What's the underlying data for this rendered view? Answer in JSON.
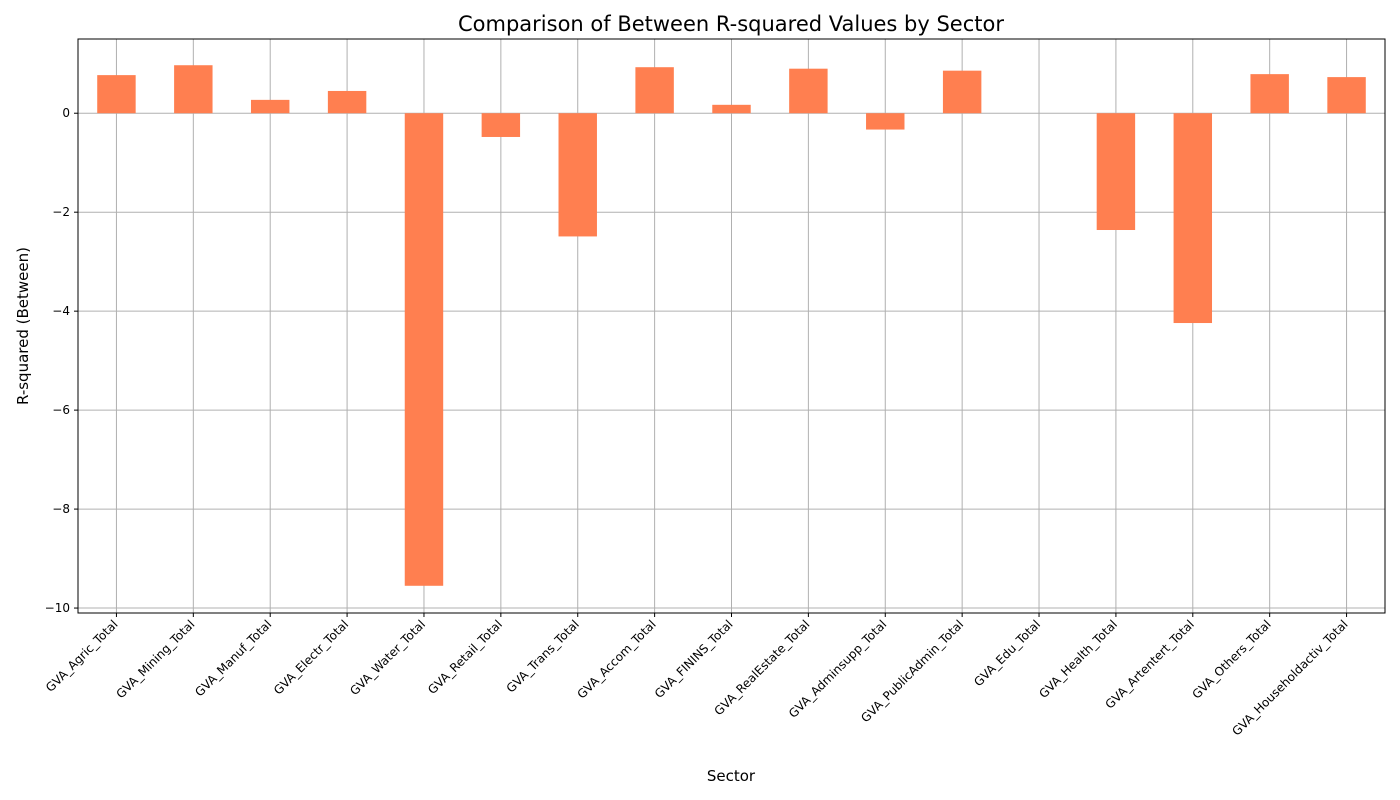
{
  "chart_data": {
    "type": "bar",
    "title": "Comparison of Between R-squared Values by Sector",
    "xlabel": "Sector",
    "ylabel": "R-squared (Between)",
    "categories": [
      "GVA_Agric_Total",
      "GVA_Mining_Total",
      "GVA_Manuf_Total",
      "GVA_Electr_Total",
      "GVA_Water_Total",
      "GVA_Retail_Total",
      "GVA_Trans_Total",
      "GVA_Accom_Total",
      "GVA_FININS_Total",
      "GVA_RealEstate_Total",
      "GVA_Adminsupp_Total",
      "GVA_PublicAdmin_Total",
      "GVA_Edu_Total",
      "GVA_Health_Total",
      "GVA_Artentert_Total",
      "GVA_Others_Total",
      "GVA_Householdactiv_Total"
    ],
    "values": [
      0.77,
      0.97,
      0.27,
      0.45,
      -9.55,
      -0.48,
      -2.49,
      0.93,
      0.17,
      0.9,
      -0.33,
      0.86,
      0.0,
      -2.36,
      -4.24,
      0.79,
      0.73
    ],
    "ylim": [
      -10.1,
      1.5
    ],
    "yticks": [
      0,
      -2,
      -4,
      -6,
      -8,
      -10
    ],
    "ytick_labels": [
      "0",
      "−2",
      "−4",
      "−6",
      "−8",
      "−10"
    ],
    "grid": true,
    "legend": "none",
    "bar_color": "#ff7f50",
    "grid_color": "#b0b0b0"
  }
}
